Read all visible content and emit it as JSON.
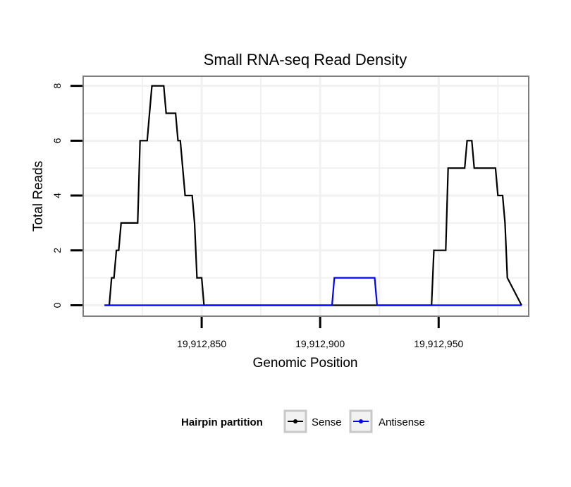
{
  "chart_data": {
    "type": "line",
    "title": "Small RNA-seq Read Density",
    "xlabel": "Genomic Position",
    "ylabel": "Total Reads",
    "xlim": [
      19912800,
      19912988
    ],
    "ylim": [
      -0.4,
      8.35
    ],
    "x_ticks": [
      19912850,
      19912900,
      19912950
    ],
    "x_tick_labels": [
      "19,912,850",
      "19,912,900",
      "19,912,950"
    ],
    "y_ticks": [
      0,
      2,
      4,
      6,
      8
    ],
    "y_tick_labels": [
      "0",
      "2",
      "4",
      "6",
      "8"
    ],
    "grid": true,
    "legend": {
      "title": "Hairpin partition",
      "position": "bottom",
      "entries": [
        "Sense",
        "Antisense"
      ]
    },
    "series": [
      {
        "name": "Sense",
        "color": "#000000",
        "x": [
          19912809,
          19912811,
          19912812,
          19912813,
          19912814,
          19912815,
          19912816,
          19912817,
          19912823,
          19912824,
          19912827,
          19912828,
          19912829,
          19912834,
          19912835,
          19912839,
          19912840,
          19912841,
          19912842,
          19912843,
          19912846,
          19912847,
          19912848,
          19912850,
          19912851,
          19912855,
          19912856,
          19912947,
          19912948,
          19912953,
          19912954,
          19912961,
          19912962,
          19912964,
          19912965,
          19912974,
          19912975,
          19912977,
          19912978,
          19912979,
          19912985
        ],
        "y": [
          0,
          0,
          1,
          1,
          2,
          2,
          3,
          3,
          3,
          6,
          6,
          7,
          8,
          8,
          7,
          7,
          6,
          6,
          5,
          4,
          4,
          3,
          1,
          1,
          0,
          0,
          0,
          0,
          2,
          2,
          5,
          5,
          6,
          6,
          5,
          5,
          4,
          4,
          3,
          1,
          0
        ]
      },
      {
        "name": "Antisense",
        "color": "#0000ff",
        "x": [
          19912809,
          19912905,
          19912906,
          19912923,
          19912924,
          19912985
        ],
        "y": [
          0,
          0,
          1,
          1,
          0,
          0
        ]
      }
    ]
  }
}
